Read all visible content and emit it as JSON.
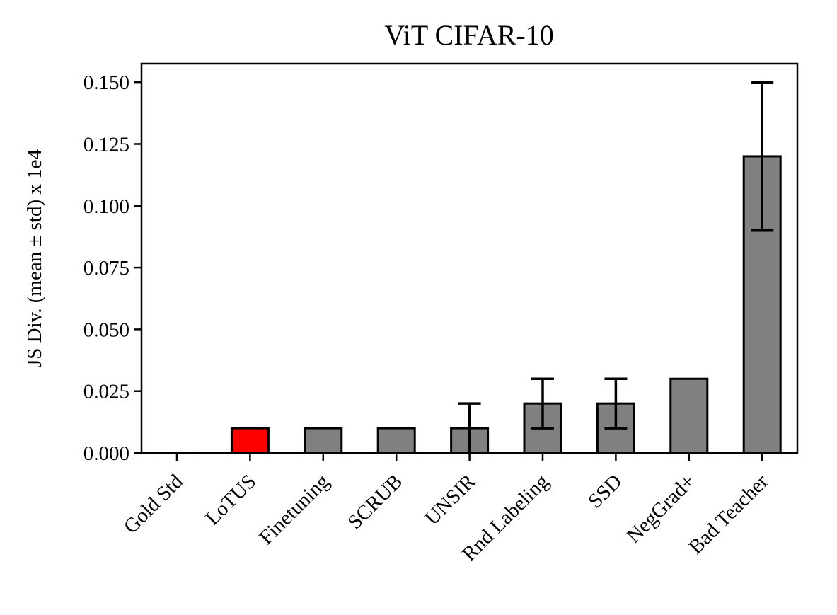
{
  "chart_data": {
    "type": "bar",
    "title": "ViT CIFAR-10",
    "xlabel": "",
    "ylabel": "JS Div. (mean ± std) x 1e4",
    "ylim": [
      0,
      0.1575
    ],
    "yticks": [
      0.0,
      0.025,
      0.05,
      0.075,
      0.1,
      0.125,
      0.15
    ],
    "ytick_labels": [
      "0.000",
      "0.025",
      "0.050",
      "0.075",
      "0.100",
      "0.125",
      "0.150"
    ],
    "categories": [
      "Gold Std",
      "LoTUS",
      "Finetuning",
      "SCRUB",
      "UNSIR",
      "Rnd Labeling",
      "SSD",
      "NegGrad+",
      "Bad Teacher"
    ],
    "values": [
      0.0,
      0.01,
      0.01,
      0.01,
      0.01,
      0.02,
      0.02,
      0.03,
      0.12
    ],
    "errors": [
      0.0,
      0.0,
      0.0,
      0.0,
      0.01,
      0.01,
      0.01,
      0.0,
      0.03
    ],
    "colors": [
      "#808080",
      "#ff0000",
      "#808080",
      "#808080",
      "#808080",
      "#808080",
      "#808080",
      "#808080",
      "#808080"
    ],
    "grid": false,
    "legend": "none"
  }
}
